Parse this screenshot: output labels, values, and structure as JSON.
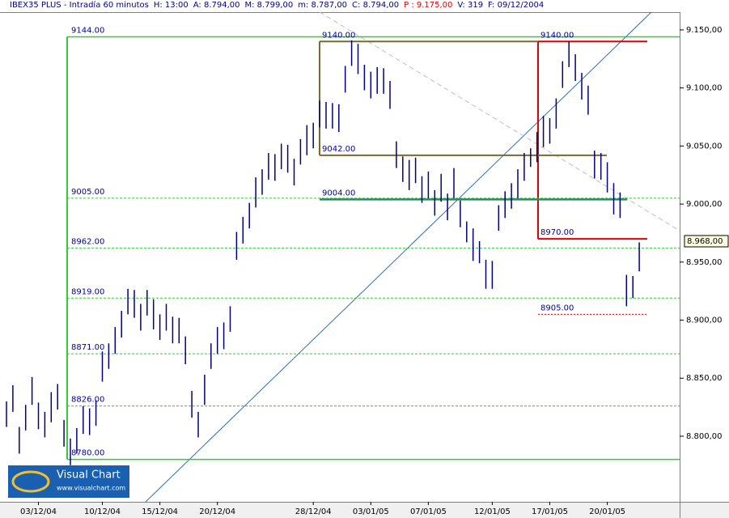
{
  "chart_data": {
    "type": "ohlc",
    "header": [
      "IBEX35 PLUS - Intradía 60 minutos",
      "H: 13:00",
      "A: 8.794,00",
      "M: 8.799,00",
      "m: 8.787,00",
      "C: 8.794,00",
      "P : 9.175,00",
      "V: 319",
      "F: 09/12/2004"
    ],
    "header_colors": [
      "#000080",
      "#000080",
      "#000080",
      "#000080",
      "#000080",
      "#000080",
      "#e00000",
      "#000080",
      "#000080"
    ],
    "categories": [
      null,
      null,
      null,
      null,
      null,
      "03/12/04",
      null,
      null,
      null,
      null,
      null,
      null,
      null,
      null,
      null,
      "10/12/04",
      null,
      null,
      null,
      null,
      null,
      null,
      null,
      null,
      "15/12/04",
      null,
      null,
      null,
      null,
      null,
      null,
      null,
      null,
      "20/12/04",
      null,
      null,
      null,
      null,
      null,
      null,
      null,
      null,
      null,
      null,
      null,
      null,
      null,
      null,
      "28/12/04",
      null,
      null,
      null,
      null,
      null,
      null,
      null,
      null,
      "03/01/05",
      null,
      null,
      null,
      null,
      null,
      null,
      null,
      null,
      "07/01/05",
      null,
      null,
      null,
      null,
      null,
      null,
      null,
      null,
      null,
      "12/01/05",
      null,
      null,
      null,
      null,
      null,
      null,
      null,
      null,
      "17/01/05",
      null,
      null,
      null,
      null,
      null,
      null,
      null,
      null,
      "20/01/05",
      null,
      null,
      null,
      null,
      null
    ],
    "high": [
      8830,
      8844,
      8808,
      8827,
      8851,
      8829,
      8821,
      8838,
      8845,
      8814,
      8798,
      8807,
      8826,
      8824,
      8831,
      8873,
      8880,
      8894,
      8908,
      8927,
      8926,
      8914,
      8926,
      8918,
      8905,
      8914,
      8903,
      8902,
      8886,
      8839,
      8821,
      8853,
      8880,
      8894,
      8898,
      8912,
      8976,
      8989,
      9001,
      9023,
      9030,
      9044,
      9043,
      9052,
      9051,
      9039,
      9056,
      9068,
      9070,
      9089,
      9088,
      9087,
      9086,
      9119,
      9141,
      9138,
      9120,
      9114,
      9118,
      9117,
      9106,
      9054,
      9041,
      9038,
      9040,
      9024,
      9028,
      9012,
      9026,
      9009,
      9031,
      9003,
      8985,
      8979,
      8968,
      8952,
      8951,
      8999,
      9011,
      9018,
      9030,
      9044,
      9048,
      9062,
      9076,
      9074,
      9091,
      9123,
      9140,
      9129,
      9113,
      9102,
      9046,
      9044,
      9036,
      9018,
      9010,
      8939,
      8938,
      8967
    ],
    "low": [
      8808,
      8821,
      8785,
      8805,
      8827,
      8806,
      8799,
      8812,
      8823,
      8791,
      8775,
      8785,
      8802,
      8801,
      8809,
      8847,
      8858,
      8871,
      8885,
      8905,
      8902,
      8891,
      8904,
      8892,
      8883,
      8891,
      8880,
      8880,
      8862,
      8816,
      8799,
      8827,
      8858,
      8871,
      8875,
      8890,
      8952,
      8966,
      8979,
      8997,
      9008,
      9021,
      9020,
      9030,
      9027,
      9016,
      9034,
      9042,
      9048,
      9066,
      9065,
      9065,
      9062,
      9096,
      9119,
      9112,
      9098,
      9091,
      9095,
      9095,
      9082,
      9031,
      9019,
      9012,
      9018,
      9001,
      9005,
      8990,
      9002,
      8986,
      9005,
      8980,
      8967,
      8951,
      8949,
      8927,
      8927,
      8977,
      8988,
      8996,
      9005,
      9020,
      9032,
      9036,
      9049,
      9052,
      9065,
      9100,
      9118,
      9106,
      9090,
      9077,
      9022,
      9021,
      9010,
      8991,
      8988,
      8912,
      8919,
      8942
    ],
    "color": "#000080",
    "ylim": [
      8743.5,
      9165.3
    ],
    "yticks": [
      {
        "value": 8800,
        "label": "8.800,00"
      },
      {
        "value": 8850,
        "label": "8.850,00"
      },
      {
        "value": 8900,
        "label": "8.900,00"
      },
      {
        "value": 8950,
        "label": "8.950,00"
      },
      {
        "value": 9000,
        "label": "9.000,00"
      },
      {
        "value": 9050,
        "label": "9.050,00"
      },
      {
        "value": 9100,
        "label": "9.100,00"
      },
      {
        "value": 9150,
        "label": "9.150,00"
      }
    ],
    "annotations": [
      {
        "value": 9144,
        "label": "9144.00"
      },
      {
        "value": 9005,
        "label": "9005.00"
      },
      {
        "value": 8962,
        "label": "8962.00"
      },
      {
        "value": 8919,
        "label": "8919.00"
      },
      {
        "value": 8871,
        "label": "8871.00"
      },
      {
        "value": 8826,
        "label": "8826.00"
      },
      {
        "value": 8780,
        "label": "8780.00"
      },
      {
        "value": 9140,
        "label": "9140.00"
      },
      {
        "value": 9042,
        "label": "9042.00"
      },
      {
        "value": 9004,
        "label": "9004.00"
      },
      {
        "value": 9140,
        "label": "9140.00"
      },
      {
        "value": 8970,
        "label": "8970.00"
      },
      {
        "value": 8905,
        "label": "8905.00"
      }
    ],
    "last_price": {
      "value": 8968,
      "label": "8.968,00"
    },
    "logo": {
      "title": "Visual Chart",
      "url": "www.visualchart.com"
    }
  }
}
